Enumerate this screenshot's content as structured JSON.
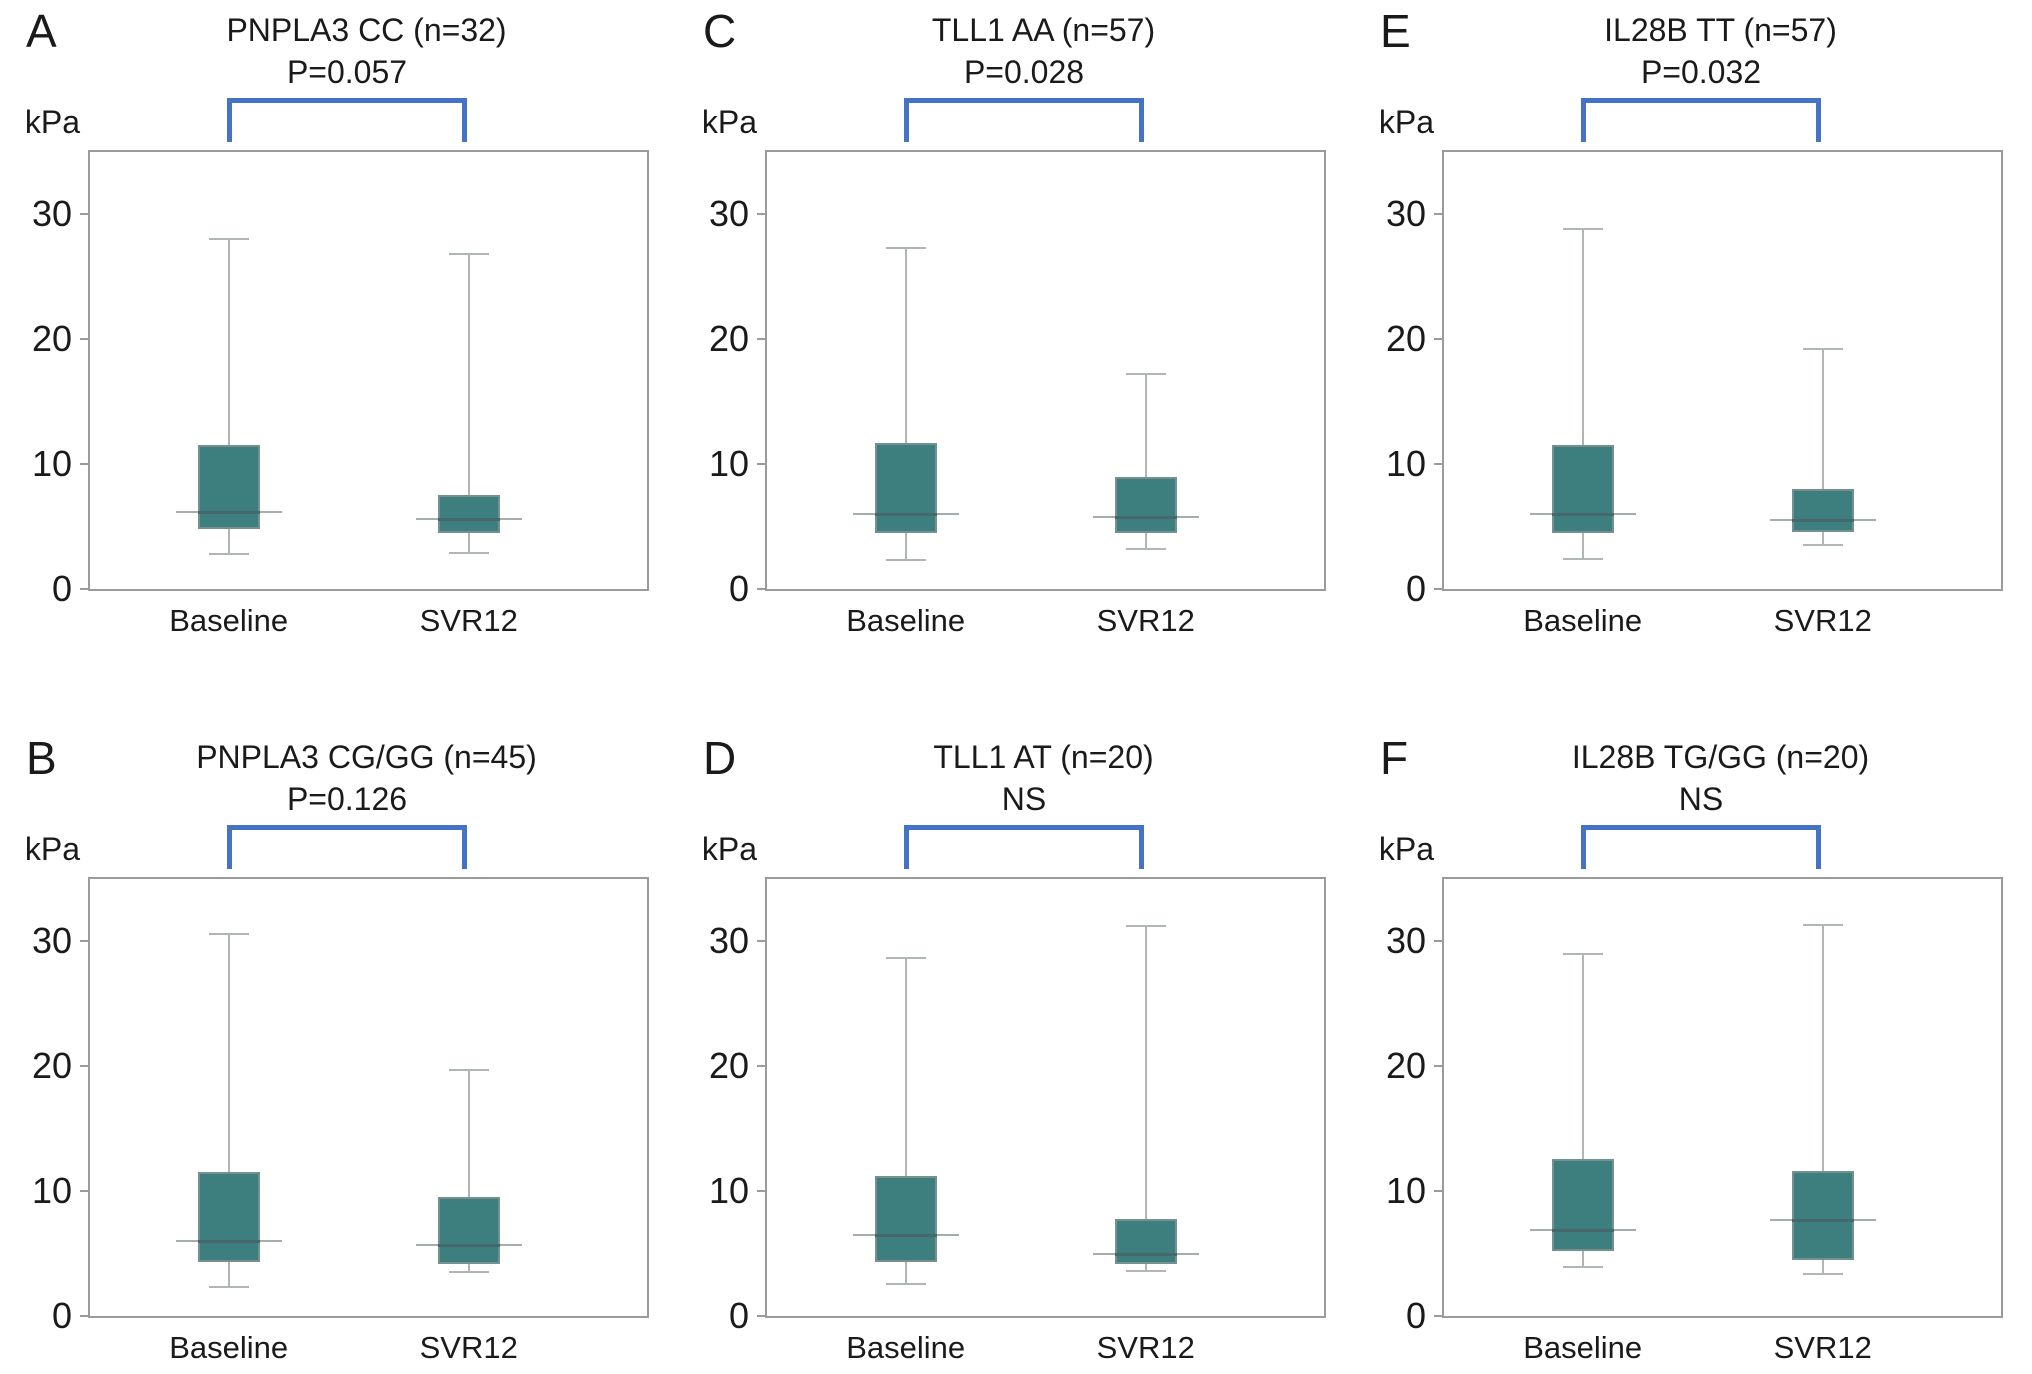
{
  "figure": {
    "unit_label": "kPa",
    "x_categories": [
      "Baseline",
      "SVR12"
    ],
    "colors": {
      "box_fill": "#3d7f7f",
      "box_border": "#74908f",
      "whisker": "#b0b5b5",
      "median_inner": "#46686a",
      "median_outer": "#a6adad",
      "bracket_blue": "#4472c4",
      "frame_gray": "#9b9b9b",
      "text": "#1a1a1a"
    }
  },
  "chart_data": [
    {
      "type": "box",
      "panel": "A",
      "title": "PNPLA3 CC (n=32)",
      "p_label": "P=0.057",
      "ylabel": "kPa",
      "ylim": [
        0,
        35
      ],
      "yticks": [
        0,
        10,
        20,
        30
      ],
      "categories": [
        "Baseline",
        "SVR12"
      ],
      "series": [
        {
          "name": "Baseline",
          "whisker_low": 2.8,
          "q1": 4.8,
          "median": 6.2,
          "q3": 11.5,
          "whisker_high": 28.0
        },
        {
          "name": "SVR12",
          "whisker_low": 2.9,
          "q1": 4.5,
          "median": 5.6,
          "q3": 7.5,
          "whisker_high": 26.8
        }
      ]
    },
    {
      "type": "box",
      "panel": "C",
      "title": "TLL1 AA (n=57)",
      "p_label": "P=0.028",
      "ylabel": "kPa",
      "ylim": [
        0,
        35
      ],
      "yticks": [
        0,
        10,
        20,
        30
      ],
      "categories": [
        "Baseline",
        "SVR12"
      ],
      "series": [
        {
          "name": "Baseline",
          "whisker_low": 2.3,
          "q1": 4.5,
          "median": 6.0,
          "q3": 11.7,
          "whisker_high": 27.3
        },
        {
          "name": "SVR12",
          "whisker_low": 3.2,
          "q1": 4.5,
          "median": 5.8,
          "q3": 9.0,
          "whisker_high": 17.2
        }
      ]
    },
    {
      "type": "box",
      "panel": "E",
      "title": "IL28B TT (n=57)",
      "p_label": "P=0.032",
      "ylabel": "kPa",
      "ylim": [
        0,
        35
      ],
      "yticks": [
        0,
        10,
        20,
        30
      ],
      "categories": [
        "Baseline",
        "SVR12"
      ],
      "series": [
        {
          "name": "Baseline",
          "whisker_low": 2.4,
          "q1": 4.5,
          "median": 6.0,
          "q3": 11.5,
          "whisker_high": 28.8
        },
        {
          "name": "SVR12",
          "whisker_low": 3.5,
          "q1": 4.6,
          "median": 5.5,
          "q3": 8.0,
          "whisker_high": 19.2
        }
      ]
    },
    {
      "type": "box",
      "panel": "B",
      "title": "PNPLA3 CG/GG (n=45)",
      "p_label": "P=0.126",
      "ylabel": "kPa",
      "ylim": [
        0,
        35
      ],
      "yticks": [
        0,
        10,
        20,
        30
      ],
      "categories": [
        "Baseline",
        "SVR12"
      ],
      "series": [
        {
          "name": "Baseline",
          "whisker_low": 2.3,
          "q1": 4.3,
          "median": 6.0,
          "q3": 11.5,
          "whisker_high": 30.6
        },
        {
          "name": "SVR12",
          "whisker_low": 3.5,
          "q1": 4.2,
          "median": 5.7,
          "q3": 9.5,
          "whisker_high": 19.7
        }
      ]
    },
    {
      "type": "box",
      "panel": "D",
      "title": "TLL1 AT (n=20)",
      "p_label": "NS",
      "ylabel": "kPa",
      "ylim": [
        0,
        35
      ],
      "yticks": [
        0,
        10,
        20,
        30
      ],
      "categories": [
        "Baseline",
        "SVR12"
      ],
      "series": [
        {
          "name": "Baseline",
          "whisker_low": 2.6,
          "q1": 4.3,
          "median": 6.5,
          "q3": 11.2,
          "whisker_high": 28.7
        },
        {
          "name": "SVR12",
          "whisker_low": 3.6,
          "q1": 4.2,
          "median": 5.0,
          "q3": 7.8,
          "whisker_high": 31.2
        }
      ]
    },
    {
      "type": "box",
      "panel": "F",
      "title": "IL28B TG/GG (n=20)",
      "p_label": "NS",
      "ylabel": "kPa",
      "ylim": [
        0,
        35
      ],
      "yticks": [
        0,
        10,
        20,
        30
      ],
      "categories": [
        "Baseline",
        "SVR12"
      ],
      "series": [
        {
          "name": "Baseline",
          "whisker_low": 3.9,
          "q1": 5.2,
          "median": 6.9,
          "q3": 12.6,
          "whisker_high": 29.0
        },
        {
          "name": "SVR12",
          "whisker_low": 3.4,
          "q1": 4.5,
          "median": 7.7,
          "q3": 11.6,
          "whisker_high": 31.3
        }
      ]
    }
  ]
}
